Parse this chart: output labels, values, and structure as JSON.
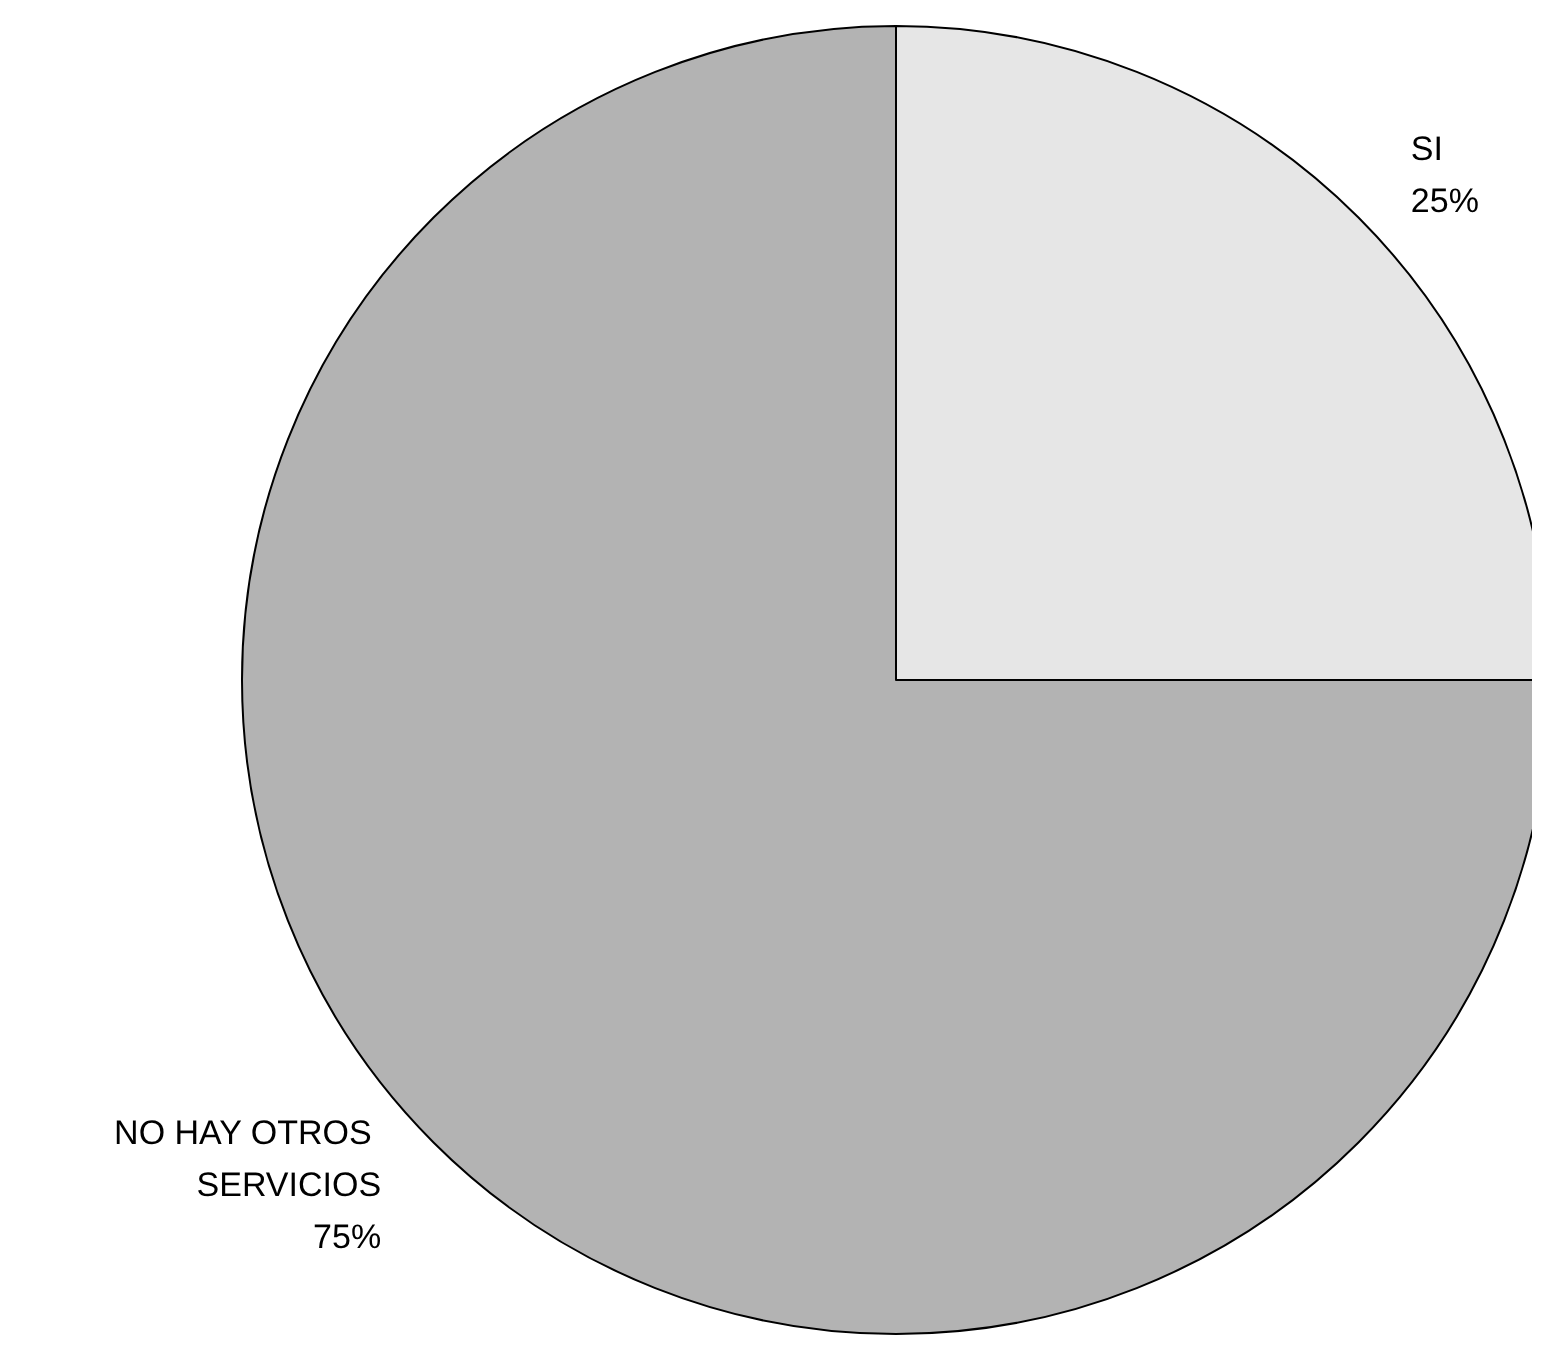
{
  "chart_data": {
    "type": "pie",
    "categories": [
      "SI",
      "NO HAY OTROS SERVICIOS"
    ],
    "values": [
      25,
      75
    ],
    "colors": [
      "#e6e6e6",
      "#b3b3b3"
    ],
    "value_labels": [
      "25%",
      "75%"
    ],
    "legend": false
  }
}
